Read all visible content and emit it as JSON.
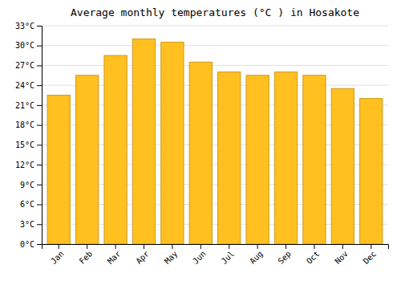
{
  "chart_data": {
    "type": "bar",
    "title": "Average monthly temperatures (°C ) in Hosakote",
    "categories": [
      "Jan",
      "Feb",
      "Mar",
      "Apr",
      "May",
      "Jun",
      "Jul",
      "Aug",
      "Sep",
      "Oct",
      "Nov",
      "Dec"
    ],
    "values": [
      22.5,
      25.5,
      28.5,
      31.0,
      30.5,
      27.5,
      26.0,
      25.5,
      26.0,
      25.5,
      23.5,
      22.0
    ],
    "color": "#FFC020",
    "ylim": [
      0,
      33
    ],
    "yticks": [
      {
        "value": 0,
        "label": "0°C"
      },
      {
        "value": 3,
        "label": "3°C"
      },
      {
        "value": 6,
        "label": "6°C"
      },
      {
        "value": 9,
        "label": "9°C"
      },
      {
        "value": 12,
        "label": "12°C"
      },
      {
        "value": 15,
        "label": "15°C"
      },
      {
        "value": 18,
        "label": "18°C"
      },
      {
        "value": 21,
        "label": "21°C"
      },
      {
        "value": 24,
        "label": "24°C"
      },
      {
        "value": 27,
        "label": "27°C"
      },
      {
        "value": 30,
        "label": "30°C"
      },
      {
        "value": 33,
        "label": "33°C"
      }
    ],
    "grid": true
  }
}
